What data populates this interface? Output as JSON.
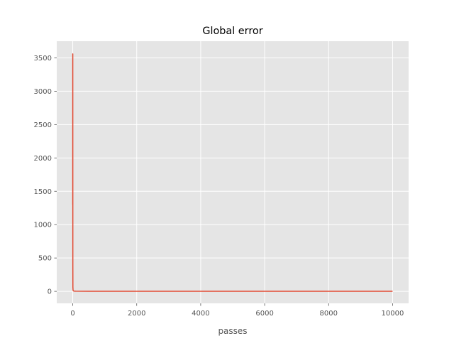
{
  "chart_data": {
    "type": "line",
    "title": "Global error",
    "xlabel": "passes",
    "ylabel": "",
    "xlim": [
      -500,
      10500
    ],
    "ylim": [
      -180,
      3750
    ],
    "grid": true,
    "x_ticks": [
      0,
      2000,
      4000,
      6000,
      8000,
      10000
    ],
    "y_ticks": [
      0,
      500,
      1000,
      1500,
      2000,
      2500,
      3000,
      3500
    ],
    "series": [
      {
        "color": "#E24A33",
        "points": [
          [
            0,
            1300
          ],
          [
            1,
            3560
          ],
          [
            2,
            2000
          ],
          [
            3,
            400
          ],
          [
            5,
            60
          ],
          [
            10,
            15
          ],
          [
            20,
            6
          ],
          [
            50,
            3
          ],
          [
            100,
            2
          ],
          [
            500,
            1.5
          ],
          [
            1000,
            1
          ],
          [
            2000,
            1
          ],
          [
            4000,
            1
          ],
          [
            6000,
            1
          ],
          [
            8000,
            1
          ],
          [
            10000,
            1
          ]
        ]
      }
    ]
  }
}
